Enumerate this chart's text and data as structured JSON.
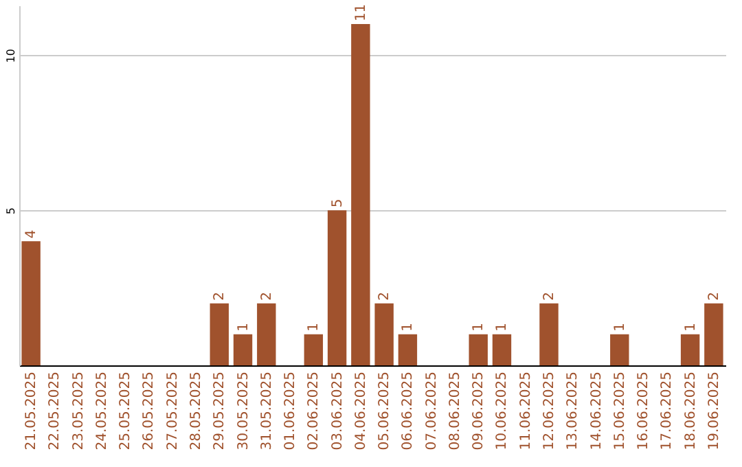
{
  "chart_data": {
    "type": "bar",
    "categories": [
      "21.05.2025",
      "22.05.2025",
      "23.05.2025",
      "24.05.2025",
      "25.05.2025",
      "26.05.2025",
      "27.05.2025",
      "28.05.2025",
      "29.05.2025",
      "30.05.2025",
      "31.05.2025",
      "01.06.2025",
      "02.06.2025",
      "03.06.2025",
      "04.06.2025",
      "05.06.2025",
      "06.06.2025",
      "07.06.2025",
      "08.06.2025",
      "09.06.2025",
      "10.06.2025",
      "11.06.2025",
      "12.06.2025",
      "13.06.2025",
      "14.06.2025",
      "15.06.2025",
      "16.06.2025",
      "17.06.2025",
      "18.06.2025",
      "19.06.2025"
    ],
    "values": [
      4,
      0,
      0,
      0,
      0,
      0,
      0,
      0,
      2,
      1,
      2,
      0,
      1,
      5,
      11,
      2,
      1,
      0,
      0,
      1,
      1,
      0,
      2,
      0,
      0,
      1,
      0,
      0,
      1,
      2
    ],
    "value_labels": [
      "4",
      null,
      null,
      null,
      null,
      null,
      null,
      null,
      "2",
      "1",
      "2",
      null,
      "1",
      "5",
      "11",
      "2",
      "1",
      null,
      null,
      "1",
      "1",
      null,
      "2",
      null,
      null,
      "1",
      null,
      null,
      "1",
      "2"
    ],
    "color": "#a0522d",
    "ylim": [
      0,
      11.6
    ],
    "yticks": [
      5,
      10
    ],
    "grid": "y"
  }
}
